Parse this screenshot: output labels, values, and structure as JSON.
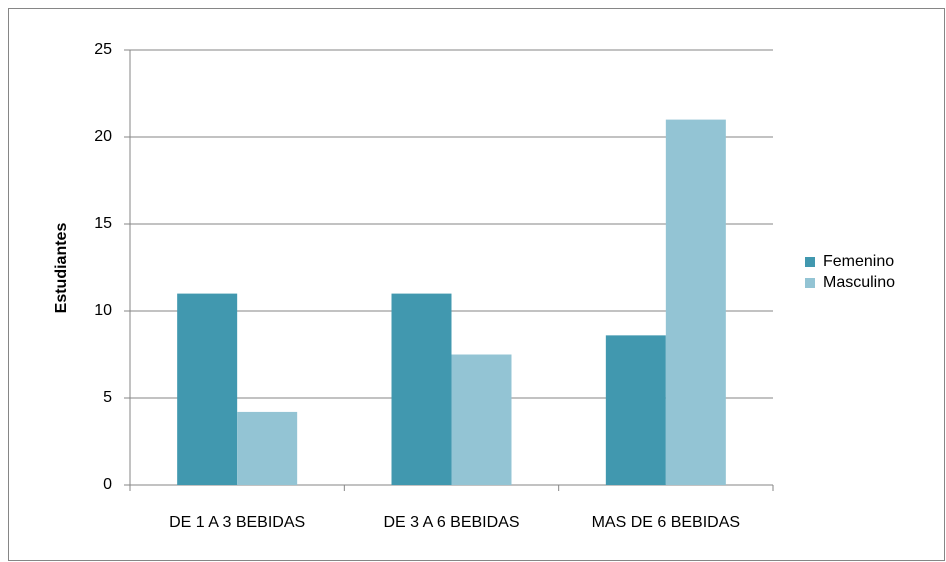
{
  "chart_data": {
    "type": "bar",
    "y_label": "Estudiantes",
    "categories": [
      "DE 1 A 3 BEBIDAS",
      "DE 3 A 6 BEBIDAS",
      "MAS DE 6 BEBIDAS"
    ],
    "series": [
      {
        "name": "Femenino",
        "color": "#4198af",
        "values": [
          11,
          11,
          8.6
        ]
      },
      {
        "name": "Masculino",
        "color": "#93c4d4",
        "values": [
          4.2,
          7.5,
          21
        ]
      }
    ],
    "ylim": [
      0,
      25
    ],
    "yticks": [
      0,
      5,
      10,
      15,
      20,
      25
    ],
    "grid": true,
    "legend": "right"
  }
}
